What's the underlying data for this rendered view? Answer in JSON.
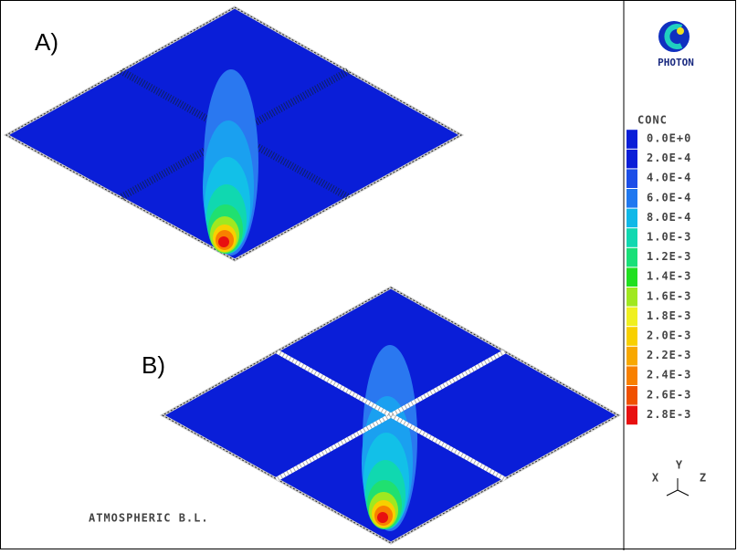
{
  "panels": [
    {
      "label": "A)"
    },
    {
      "label": "B)"
    }
  ],
  "logo": {
    "text": "PHOTON"
  },
  "legend": {
    "title": "CONC",
    "levels": [
      {
        "label": "0.0E+0",
        "color": "#0a1ed8"
      },
      {
        "label": "2.0E-4",
        "color": "#0a1ed8"
      },
      {
        "label": "4.0E-4",
        "color": "#1c4ee8"
      },
      {
        "label": "6.0E-4",
        "color": "#2078f0"
      },
      {
        "label": "8.0E-4",
        "color": "#10b8e8"
      },
      {
        "label": "1.0E-3",
        "color": "#10d8b0"
      },
      {
        "label": "1.2E-3",
        "color": "#18e078"
      },
      {
        "label": "1.4E-3",
        "color": "#20e020"
      },
      {
        "label": "1.6E-3",
        "color": "#a0e820"
      },
      {
        "label": "1.8E-3",
        "color": "#f0f020"
      },
      {
        "label": "2.0E-3",
        "color": "#f8d000"
      },
      {
        "label": "2.2E-3",
        "color": "#f8a800"
      },
      {
        "label": "2.4E-3",
        "color": "#f88000"
      },
      {
        "label": "2.6E-3",
        "color": "#f05000"
      },
      {
        "label": "2.8E-3",
        "color": "#e81010"
      }
    ]
  },
  "axes": {
    "x": "X",
    "y": "Y",
    "z": "Z"
  },
  "footer": "ATMOSPHERIC B.L."
}
